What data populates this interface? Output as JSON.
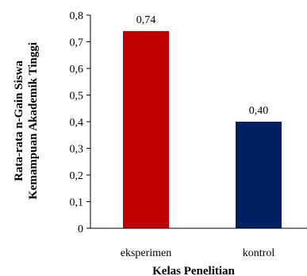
{
  "chart_data": {
    "type": "bar",
    "categories": [
      "eksperimen",
      "kontrol"
    ],
    "values": [
      0.74,
      0.4
    ],
    "data_labels": [
      "0,74",
      "0,40"
    ],
    "colors": [
      "#C00000",
      "#002060"
    ],
    "title": "",
    "xlabel": "Kelas Penelitian",
    "ylabel_line1": "Rata-rata n-Gain Siswa",
    "ylabel_line2": "Kemampuan Akademik Tinggi",
    "ylim": [
      0,
      0.8
    ],
    "yticks": [
      {
        "value": 0,
        "label": "0"
      },
      {
        "value": 0.1,
        "label": "0,1"
      },
      {
        "value": 0.2,
        "label": "0,2"
      },
      {
        "value": 0.3,
        "label": "0,3"
      },
      {
        "value": 0.4,
        "label": "0,4"
      },
      {
        "value": 0.5,
        "label": "0,5"
      },
      {
        "value": 0.6,
        "label": "0,6"
      },
      {
        "value": 0.7,
        "label": "0,7"
      },
      {
        "value": 0.8,
        "label": "0,8"
      }
    ],
    "grid": false,
    "legend": "none"
  }
}
